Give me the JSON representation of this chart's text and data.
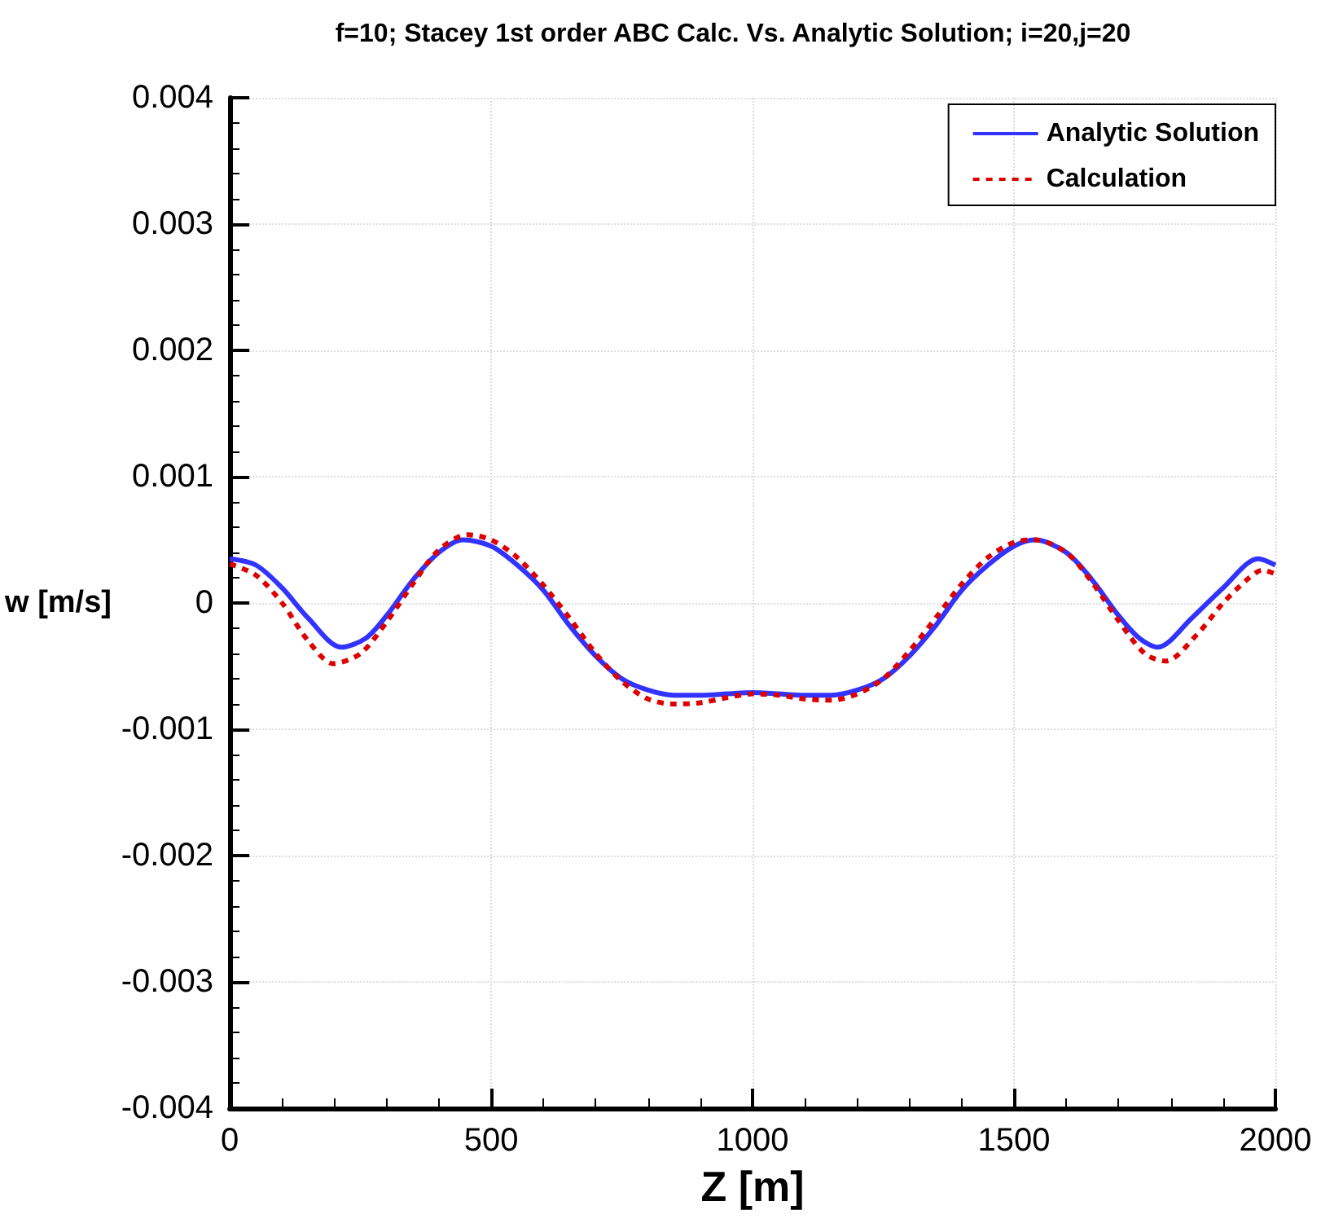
{
  "chart_data": {
    "type": "line",
    "title": "f=10; Stacey 1st order ABC Calc. Vs. Analytic Solution; i=20,j=20",
    "xlabel": "Z [m]",
    "ylabel": "w [m/s]",
    "xlim": [
      0,
      2000
    ],
    "xticks": [
      0,
      500,
      1000,
      1500,
      2000
    ],
    "ylim": [
      -0.004,
      0.004
    ],
    "yticks": [
      -0.004,
      -0.003,
      -0.002,
      -0.001,
      0,
      0.001,
      0.002,
      0.003,
      0.004
    ],
    "grid": true,
    "legend": "top right",
    "marker": "none",
    "series": [
      {
        "name": "Analytic Solution",
        "color": "#3333ff",
        "line_style": "solid",
        "x": [
          0,
          50,
          100,
          150,
          213,
          260,
          300,
          350,
          400,
          446,
          500,
          550,
          600,
          650,
          700,
          750,
          800,
          850,
          900,
          950,
          1000,
          1050,
          1100,
          1150,
          1200,
          1250,
          1300,
          1350,
          1400,
          1450,
          1500,
          1540,
          1600,
          1650,
          1700,
          1740,
          1775,
          1840,
          1900,
          1967,
          2000
        ],
        "values": [
          0.00035,
          0.0003,
          0.00012,
          -0.00012,
          -0.00035,
          -0.00028,
          -0.0001,
          0.00018,
          0.0004,
          0.0005,
          0.00045,
          0.0003,
          0.0001,
          -0.00018,
          -0.00042,
          -0.0006,
          -0.00069,
          -0.00073,
          -0.00073,
          -0.00072,
          -0.00071,
          -0.00072,
          -0.00073,
          -0.00073,
          -0.00069,
          -0.0006,
          -0.00042,
          -0.00018,
          0.0001,
          0.0003,
          0.00045,
          0.0005,
          0.0004,
          0.00018,
          -0.0001,
          -0.00028,
          -0.00035,
          -0.00012,
          0.00012,
          0.00035,
          0.0003
        ]
      },
      {
        "name": "Calculation",
        "color": "#dd0000",
        "line_style": "dashed",
        "x": [
          0,
          50,
          100,
          150,
          198,
          250,
          300,
          350,
          400,
          455,
          500,
          550,
          600,
          650,
          700,
          750,
          800,
          850,
          900,
          950,
          1000,
          1050,
          1100,
          1150,
          1200,
          1250,
          1300,
          1350,
          1400,
          1450,
          1500,
          1540,
          1600,
          1650,
          1700,
          1750,
          1790,
          1850,
          1900,
          1950,
          1975,
          2000
        ],
        "values": [
          0.00031,
          0.00022,
          0.0,
          -0.0003,
          -0.00048,
          -0.0004,
          -0.00015,
          0.00015,
          0.00042,
          0.00054,
          0.0005,
          0.00036,
          0.00014,
          -0.00012,
          -0.0004,
          -0.00062,
          -0.00076,
          -0.0008,
          -0.00079,
          -0.00075,
          -0.00072,
          -0.00073,
          -0.00076,
          -0.00077,
          -0.00072,
          -0.0006,
          -0.00038,
          -0.00012,
          0.00015,
          0.00036,
          0.00048,
          0.0005,
          0.0004,
          0.00016,
          -0.00014,
          -0.0004,
          -0.00046,
          -0.00025,
          0.0,
          0.0002,
          0.00026,
          0.00023
        ]
      }
    ]
  }
}
